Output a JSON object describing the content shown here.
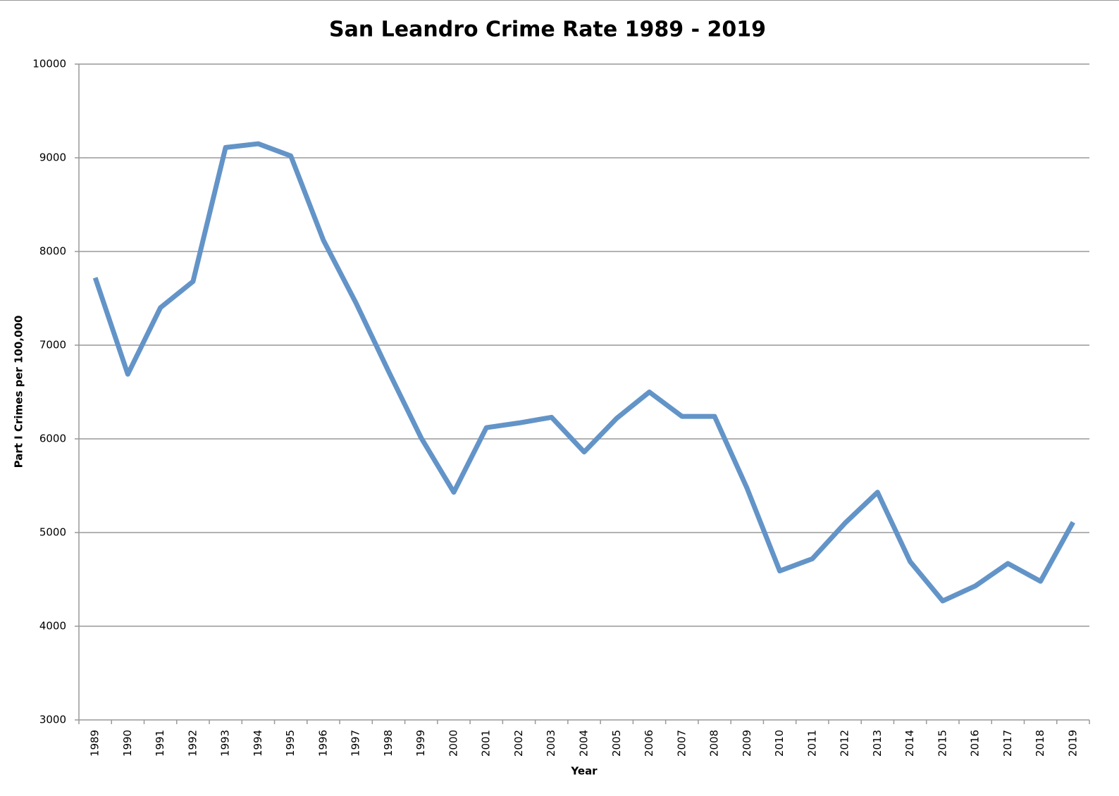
{
  "chart_data": {
    "type": "line",
    "title": "San Leandro Crime Rate 1989 - 2019",
    "x_label": "Year",
    "y_label": "Part I Crimes per 100,000",
    "categories": [
      "1989",
      "1990",
      "1991",
      "1992",
      "1993",
      "1994",
      "1995",
      "1996",
      "1997",
      "1998",
      "1999",
      "2000",
      "2001",
      "2002",
      "2003",
      "2004",
      "2005",
      "2006",
      "2007",
      "2008",
      "2009",
      "2010",
      "2011",
      "2012",
      "2013",
      "2014",
      "2015",
      "2016",
      "2017",
      "2018",
      "2019"
    ],
    "series": [
      {
        "name": "Part I Crimes per 100,000",
        "color": "#6394c8",
        "values": [
          7720,
          6690,
          7400,
          7680,
          9110,
          9150,
          9020,
          8120,
          7450,
          6720,
          6010,
          5430,
          6120,
          6170,
          6230,
          5860,
          6220,
          6500,
          6240,
          6240,
          5470,
          4590,
          4720,
          5100,
          5430,
          4690,
          4270,
          4430,
          4670,
          4480,
          5110
        ]
      }
    ],
    "ylim": [
      3000,
      10000
    ],
    "yticks": [
      3000,
      4000,
      5000,
      6000,
      7000,
      8000,
      9000,
      10000
    ],
    "grid": true
  }
}
